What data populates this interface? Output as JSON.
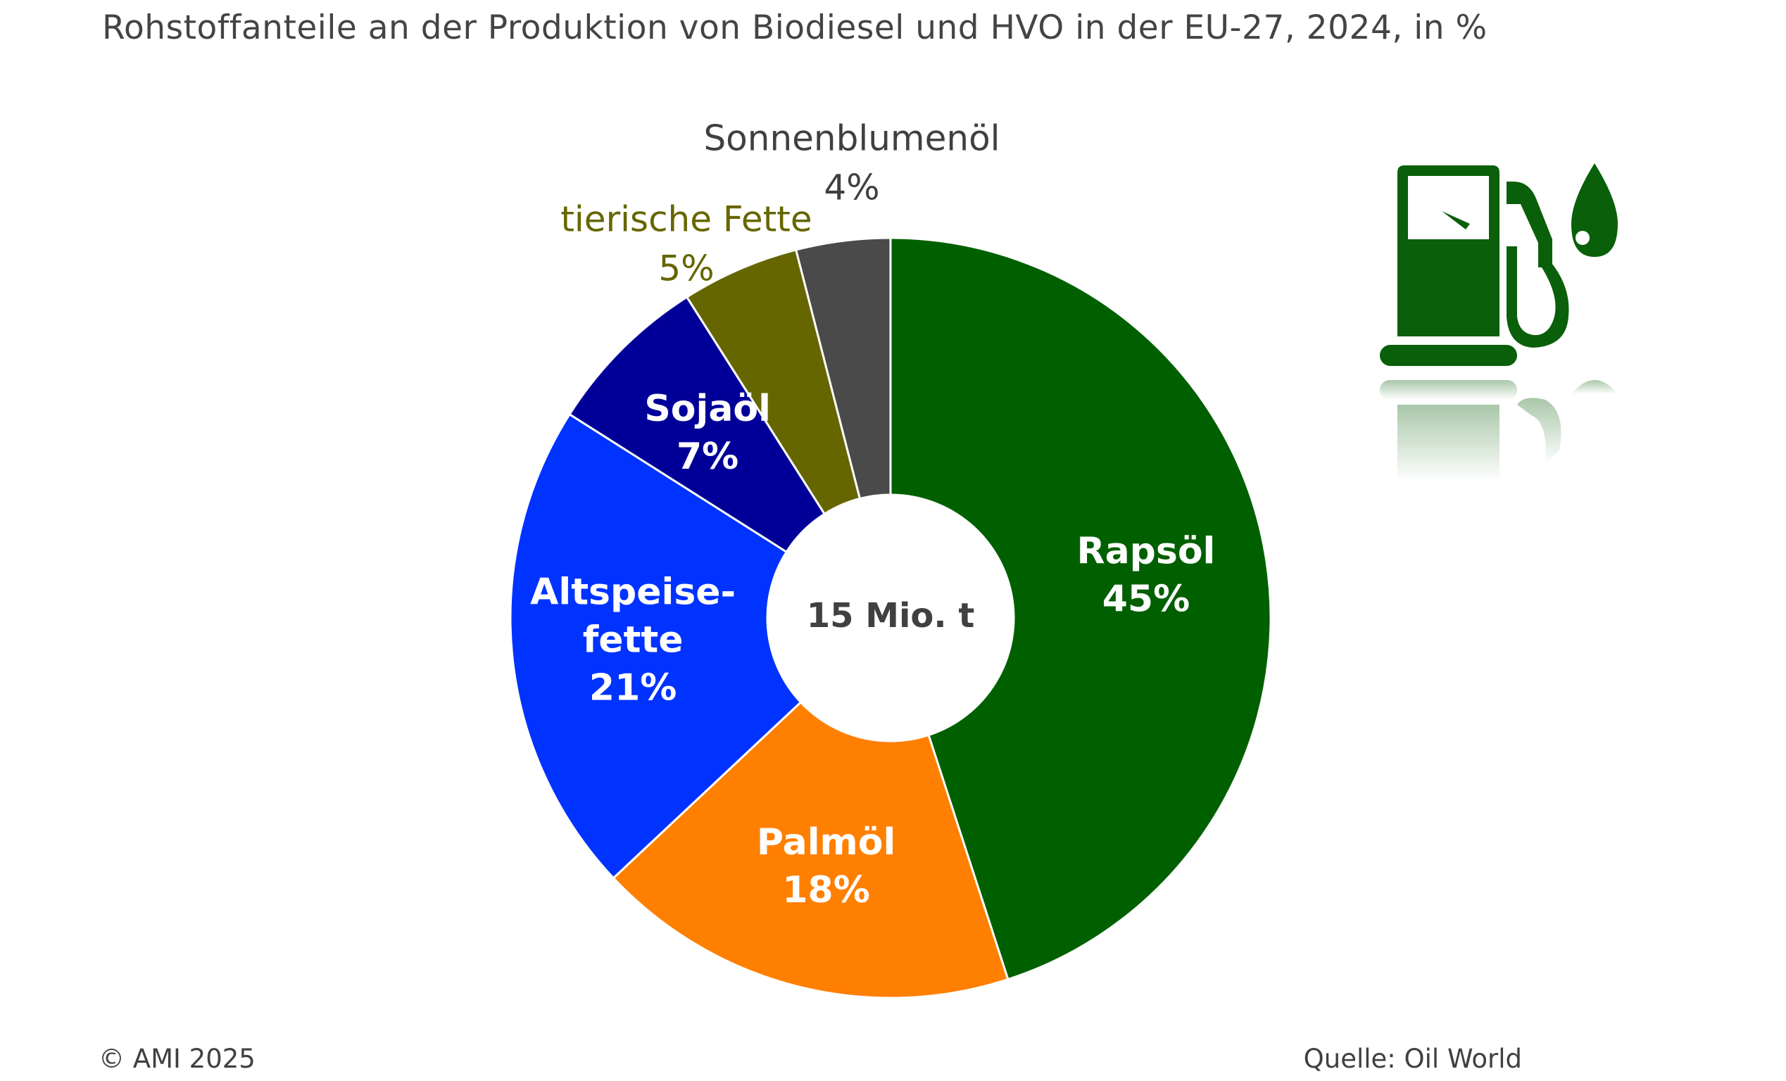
{
  "title": "Rohstoffanteile an der Produktion von Biodiesel und HVO in der EU-27, 2024, in %",
  "chart_data": {
    "type": "pie",
    "title": "Rohstoffanteile an der Produktion von Biodiesel und HVO in der EU-27, 2024, in %",
    "center_label": "15 Mio. t",
    "donut": true,
    "series": [
      {
        "name": "Rapsöl",
        "label_lines": [
          "Rapsöl"
        ],
        "value": 45,
        "value_label": "45%",
        "color": "#006000",
        "label_color": "#ffffff",
        "label_position": "inside"
      },
      {
        "name": "Palmöl",
        "label_lines": [
          "Palmöl"
        ],
        "value": 18,
        "value_label": "18%",
        "color": "#ff7f00",
        "label_color": "#ffffff",
        "label_position": "inside"
      },
      {
        "name": "Altspeise-fette",
        "label_lines": [
          "Altspeise-",
          "fette"
        ],
        "value": 21,
        "value_label": "21%",
        "color": "#0033ff",
        "label_color": "#ffffff",
        "label_position": "inside"
      },
      {
        "name": "Sojaöl",
        "label_lines": [
          "Sojaöl"
        ],
        "value": 7,
        "value_label": "7%",
        "color": "#000099",
        "label_color": "#ffffff",
        "label_position": "inside"
      },
      {
        "name": "tierische Fette",
        "label_lines": [
          "tierische Fette"
        ],
        "value": 5,
        "value_label": "5%",
        "color": "#666600",
        "label_color": "#666600",
        "label_position": "outside"
      },
      {
        "name": "Sonnenblumenöl",
        "label_lines": [
          "Sonnenblumenöl"
        ],
        "value": 4,
        "value_label": "4%",
        "color": "#4a4a4a",
        "label_color": "#404040",
        "label_position": "outside"
      }
    ]
  },
  "footer": {
    "copyright": "© AMI 2025",
    "source": "Quelle: Oil World"
  },
  "icon": {
    "name": "fuel-pump-icon",
    "color": "#0a5f0a"
  }
}
